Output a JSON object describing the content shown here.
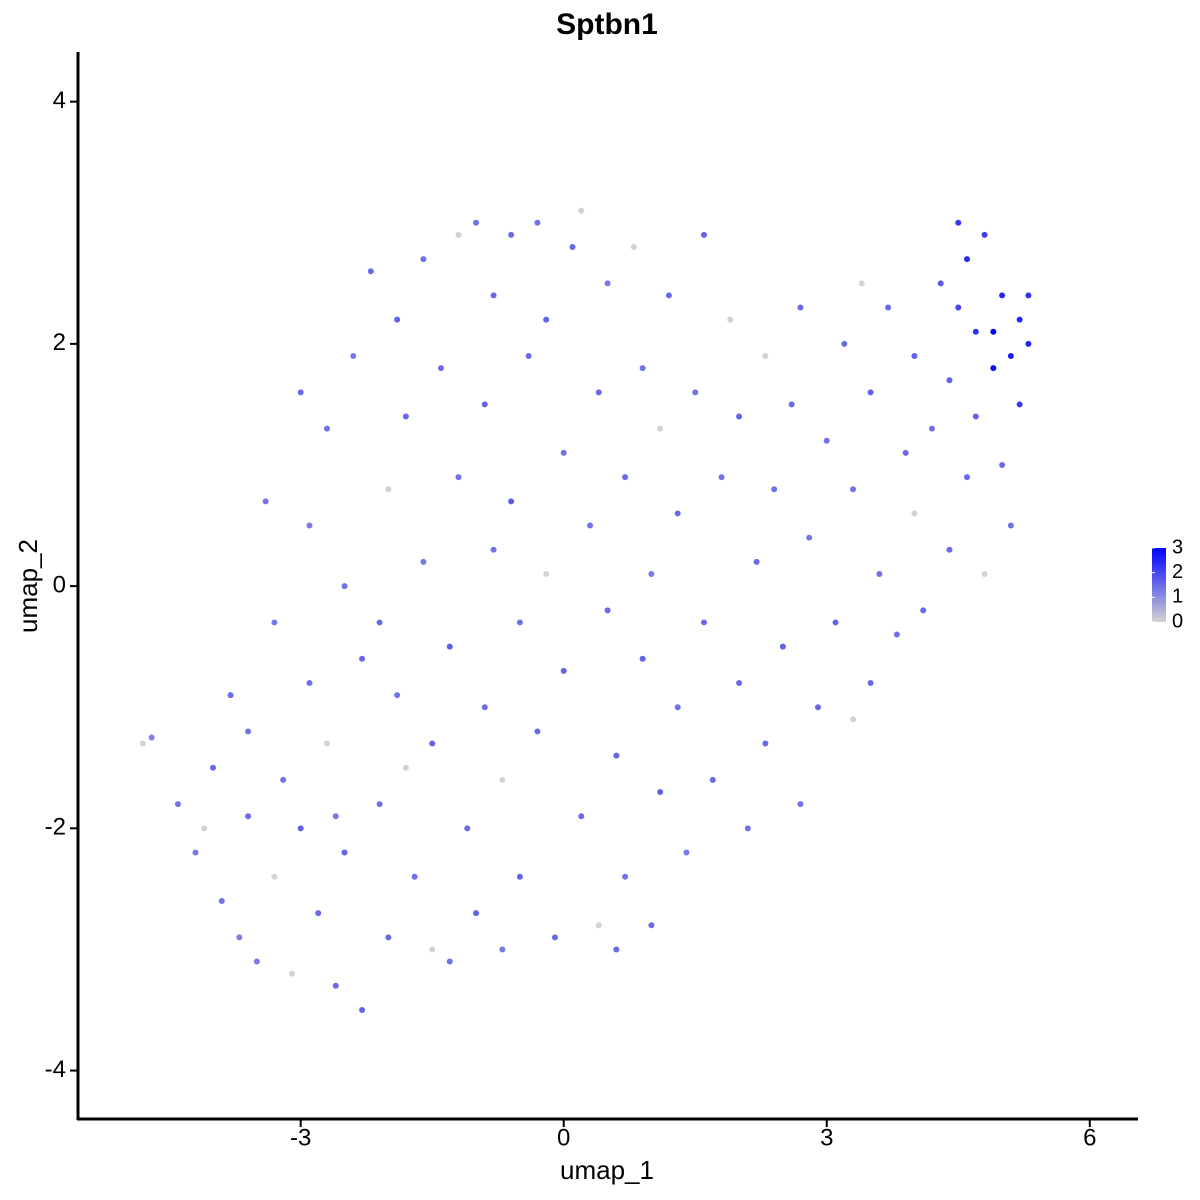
{
  "chart_data": {
    "type": "scatter",
    "title": "Sptbn1",
    "x_label": "umap_1",
    "y_label": "umap_2",
    "xlim": [
      -5.54,
      6.55
    ],
    "ylim": [
      -4.4,
      4.41
    ],
    "xticks": [
      -3,
      0,
      3,
      6
    ],
    "yticks": [
      -4,
      -2,
      0,
      2,
      4
    ],
    "low_color": "#d3d3d3",
    "high_color": "#0000ff",
    "color_lim": [
      0,
      3
    ],
    "color_ticks": [
      0,
      1,
      2,
      3
    ],
    "x": [
      -4.8,
      -4.7,
      -4.4,
      -4.2,
      -4.0,
      -3.9,
      -3.7,
      -3.6,
      -3.5,
      -3.3,
      -3.3,
      -3.2,
      -3.1,
      -3.0,
      -2.9,
      -2.9,
      -2.8,
      -2.7,
      -2.7,
      -2.6,
      -2.5,
      -2.5,
      -2.4,
      -2.3,
      -2.3,
      -2.2,
      -2.1,
      -2.0,
      -2.0,
      -1.9,
      -1.9,
      -1.8,
      -1.7,
      -1.6,
      -1.6,
      -1.5,
      -1.5,
      -1.4,
      -1.3,
      -1.2,
      -1.2,
      -1.1,
      -1.0,
      -1.0,
      -0.9,
      -0.9,
      -0.8,
      -0.8,
      -0.7,
      -0.7,
      -0.6,
      -0.6,
      -0.5,
      -0.5,
      -0.4,
      -0.3,
      -0.3,
      -0.2,
      -0.2,
      -0.1,
      0.0,
      0.0,
      0.1,
      0.2,
      0.2,
      0.3,
      0.4,
      0.4,
      0.5,
      0.5,
      0.6,
      0.7,
      0.7,
      0.8,
      0.9,
      0.9,
      1.0,
      1.0,
      1.1,
      1.1,
      1.2,
      1.3,
      1.3,
      1.4,
      1.5,
      1.6,
      1.6,
      1.7,
      1.8,
      1.9,
      2.0,
      2.0,
      2.1,
      2.2,
      2.3,
      2.3,
      2.4,
      2.5,
      2.6,
      2.7,
      2.7,
      2.8,
      2.9,
      3.0,
      3.1,
      3.2,
      3.3,
      3.3,
      3.4,
      3.5,
      3.5,
      3.6,
      3.7,
      3.8,
      3.9,
      4.0,
      4.0,
      4.1,
      4.2,
      4.3,
      4.4,
      4.4,
      4.5,
      4.5,
      4.6,
      4.6,
      4.7,
      4.7,
      4.8,
      4.8,
      4.9,
      4.9,
      5.0,
      5.0,
      5.1,
      5.1,
      5.2,
      5.2,
      5.3,
      5.3,
      -3.8,
      -3.4,
      -3.0,
      -2.6,
      -2.1,
      -1.8,
      -1.3,
      0.6,
      -4.1,
      -3.6
    ],
    "y": [
      -1.3,
      -1.25,
      -1.8,
      -2.2,
      -1.5,
      -2.6,
      -2.9,
      -1.9,
      -3.1,
      -2.4,
      -0.3,
      -1.6,
      -3.2,
      -2.0,
      -0.8,
      0.5,
      -2.7,
      -1.3,
      1.3,
      -3.3,
      0.0,
      -2.2,
      1.9,
      -0.6,
      -3.5,
      2.6,
      -1.8,
      0.8,
      -2.9,
      2.2,
      -0.9,
      1.4,
      -2.4,
      0.2,
      2.7,
      -1.3,
      -3.0,
      1.8,
      -0.5,
      2.9,
      0.9,
      -2.0,
      -2.7,
      3.0,
      -1.0,
      1.5,
      0.3,
      2.4,
      -3.0,
      -1.6,
      2.9,
      0.7,
      -0.3,
      -2.4,
      1.9,
      3.0,
      -1.2,
      0.1,
      2.2,
      -2.9,
      1.1,
      -0.7,
      2.8,
      3.1,
      -1.9,
      0.5,
      -2.8,
      1.6,
      2.5,
      -0.2,
      -1.4,
      -2.4,
      0.9,
      2.8,
      -0.6,
      1.8,
      -2.8,
      0.1,
      -1.7,
      1.3,
      2.4,
      -1.0,
      0.6,
      -2.2,
      1.6,
      -0.3,
      2.9,
      -1.6,
      0.9,
      2.2,
      -0.8,
      1.4,
      -2.0,
      0.2,
      1.9,
      -1.3,
      0.8,
      -0.5,
      1.5,
      -1.8,
      2.3,
      0.4,
      -1.0,
      1.2,
      -0.3,
      2.0,
      -1.1,
      0.8,
      2.5,
      -0.8,
      1.6,
      0.1,
      2.3,
      -0.4,
      1.1,
      0.6,
      1.9,
      -0.2,
      1.3,
      2.5,
      0.3,
      1.7,
      3.0,
      2.3,
      0.9,
      2.7,
      1.4,
      2.1,
      0.1,
      2.9,
      1.8,
      2.1,
      2.4,
      1.0,
      1.9,
      0.5,
      2.2,
      1.5,
      2.0,
      2.4,
      -0.9,
      0.7,
      1.6,
      -1.9,
      -0.3,
      -1.5,
      -3.1,
      -3.0,
      -2.0,
      -1.2
    ],
    "values": [
      0,
      1.2,
      1.4,
      1.3,
      1.5,
      1.4,
      1.2,
      1.5,
      1.3,
      0,
      1.3,
      1.4,
      0,
      1.6,
      1.4,
      1.3,
      1.5,
      0,
      1.4,
      1.5,
      1.4,
      1.6,
      1.3,
      1.5,
      1.6,
      1.5,
      1.4,
      0,
      1.5,
      1.6,
      1.4,
      1.5,
      1.4,
      1.3,
      1.4,
      1.6,
      0,
      1.5,
      1.7,
      0,
      1.4,
      1.5,
      1.6,
      1.4,
      1.5,
      1.6,
      1.4,
      1.5,
      1.3,
      0,
      1.5,
      1.7,
      1.4,
      1.6,
      1.5,
      1.4,
      1.5,
      0,
      1.6,
      1.5,
      1.4,
      1.6,
      1.5,
      0,
      1.5,
      1.4,
      0,
      1.5,
      1.3,
      1.5,
      1.6,
      1.4,
      1.5,
      0,
      1.6,
      1.4,
      1.5,
      1.3,
      1.6,
      0,
      1.5,
      1.4,
      1.5,
      1.3,
      1.4,
      1.5,
      1.6,
      1.5,
      1.4,
      0,
      1.5,
      1.6,
      1.4,
      1.5,
      0,
      1.5,
      1.4,
      1.6,
      1.5,
      1.4,
      1.5,
      1.3,
      1.5,
      1.4,
      1.6,
      1.5,
      0,
      1.4,
      0,
      1.5,
      1.6,
      1.4,
      1.5,
      1.4,
      1.5,
      0,
      1.6,
      1.5,
      1.4,
      1.7,
      1.5,
      1.6,
      2.2,
      2.0,
      1.5,
      2.4,
      1.6,
      2.3,
      0,
      2.1,
      2.8,
      3.0,
      2.5,
      1.5,
      2.6,
      1.4,
      2.4,
      2.2,
      2.5,
      2.3,
      1.5,
      1.4,
      1.5,
      1.3,
      1.5,
      0,
      1.4,
      1.5,
      0,
      1.4
    ]
  }
}
